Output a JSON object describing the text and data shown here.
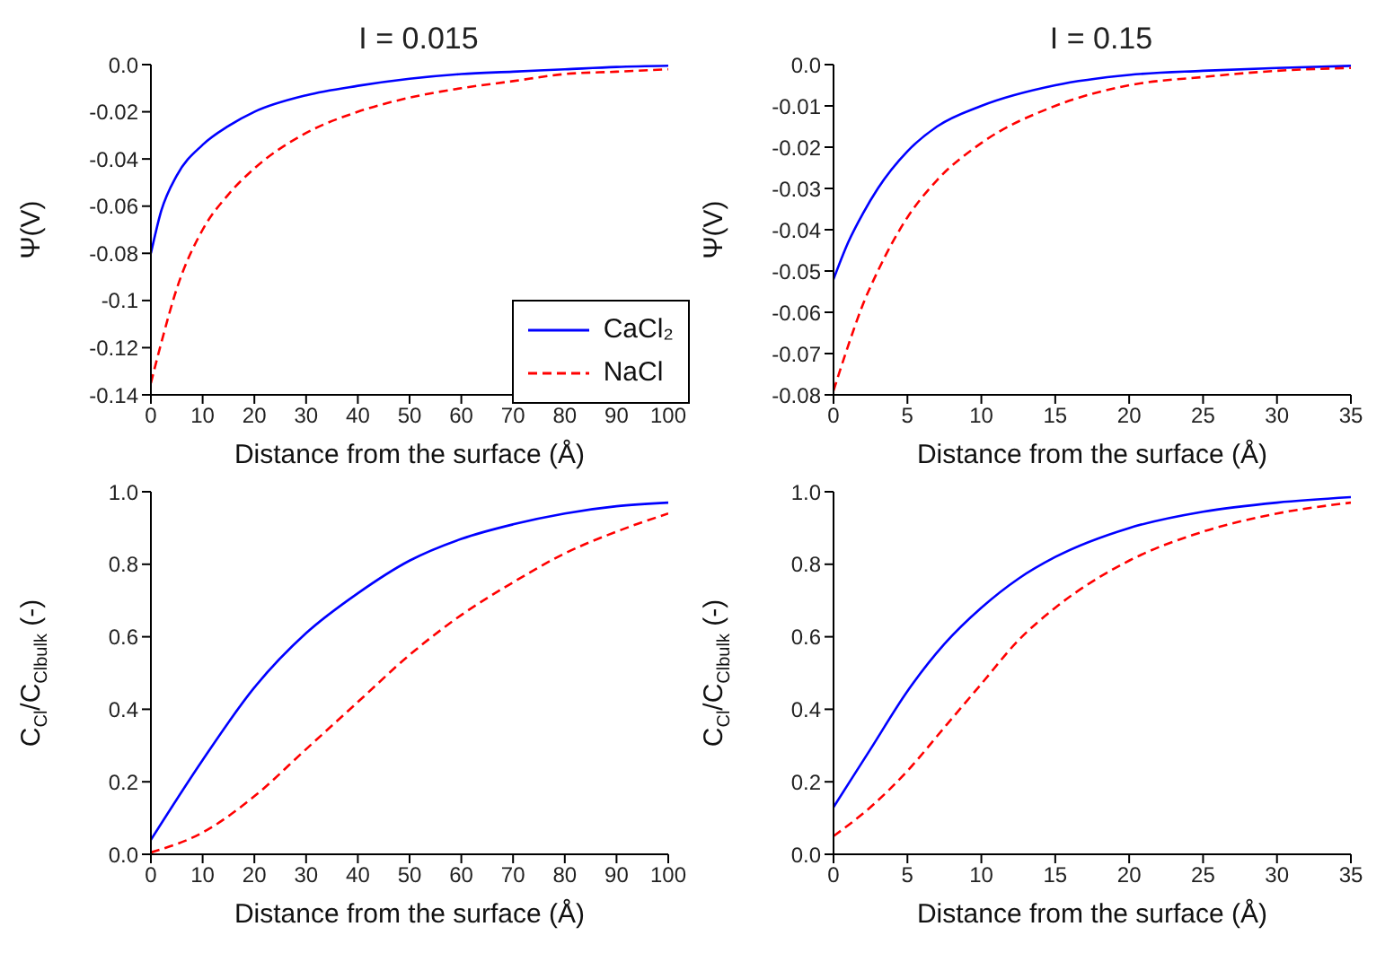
{
  "chart_data": [
    {
      "type": "line",
      "title": "I = 0.015",
      "xlabel": "Distance from the surface (Å)",
      "ylabel": "Ψ(V)",
      "xlim": [
        0,
        100
      ],
      "xticks": [
        0,
        10,
        20,
        30,
        40,
        50,
        60,
        70,
        80,
        90,
        100
      ],
      "ylim": [
        -0.14,
        0
      ],
      "yticks": [
        {
          "value": -0.14,
          "label": "-0.14"
        },
        -0.12,
        {
          "value": -0.1,
          "label": "-0.1"
        },
        -0.08,
        -0.06,
        -0.04,
        -0.02,
        {
          "value": 0,
          "label": "0.0"
        }
      ],
      "grid": false,
      "legend": "bottom right",
      "marker": "none",
      "series": [
        {
          "name": "CaCl₂",
          "color": "#0000ff",
          "line_style": "solid",
          "x": [
            0,
            2,
            5,
            10,
            15,
            20,
            30,
            40,
            50,
            60,
            70,
            80,
            90,
            100
          ],
          "values": [
            -0.08,
            -0.062,
            -0.047,
            -0.034,
            -0.026,
            -0.02,
            -0.013,
            -0.009,
            -0.006,
            -0.004,
            -0.003,
            -0.002,
            -0.001,
            -0.0005
          ]
        },
        {
          "name": "NaCl",
          "color": "#ff0000",
          "line_style": "dashed",
          "x": [
            0,
            2,
            5,
            10,
            15,
            20,
            30,
            40,
            50,
            60,
            70,
            80,
            90,
            100
          ],
          "values": [
            -0.135,
            -0.118,
            -0.095,
            -0.07,
            -0.055,
            -0.044,
            -0.029,
            -0.02,
            -0.014,
            -0.01,
            -0.007,
            -0.004,
            -0.003,
            -0.002
          ]
        }
      ]
    },
    {
      "type": "line",
      "title": "I = 0.15",
      "xlabel": "Distance from the surface (Å)",
      "ylabel": "Ψ(V)",
      "xlim": [
        0,
        35
      ],
      "xticks": [
        0,
        5,
        10,
        15,
        20,
        25,
        30,
        35
      ],
      "ylim": [
        -0.08,
        0
      ],
      "yticks": [
        -0.08,
        -0.07,
        -0.06,
        -0.05,
        -0.04,
        -0.03,
        -0.02,
        -0.01,
        {
          "value": 0,
          "label": "0.0"
        }
      ],
      "grid": false,
      "legend": false,
      "marker": "none",
      "series": [
        {
          "color": "#0000ff",
          "line_style": "solid",
          "x": [
            0,
            1,
            2,
            3,
            5,
            7,
            10,
            15,
            20,
            25,
            30,
            35
          ],
          "values": [
            -0.052,
            -0.043,
            -0.036,
            -0.03,
            -0.021,
            -0.015,
            -0.01,
            -0.005,
            -0.0025,
            -0.0015,
            -0.0008,
            -0.0003
          ]
        },
        {
          "color": "#ff0000",
          "line_style": "dashed",
          "x": [
            0,
            1,
            2,
            3,
            5,
            7,
            10,
            15,
            20,
            25,
            30,
            35
          ],
          "values": [
            -0.079,
            -0.068,
            -0.058,
            -0.05,
            -0.037,
            -0.028,
            -0.019,
            -0.01,
            -0.005,
            -0.003,
            -0.0015,
            -0.0008
          ]
        }
      ]
    },
    {
      "type": "line",
      "xlabel": "Distance from the surface (Å)",
      "ylabel": "C$_{Cl}$/C$_{Cl}$$_{bulk}$ (-)",
      "xlim": [
        0,
        100
      ],
      "xticks": [
        0,
        10,
        20,
        30,
        40,
        50,
        60,
        70,
        80,
        90,
        100
      ],
      "ylim": [
        0,
        1
      ],
      "yticks": [
        {
          "value": 0,
          "label": "0.0"
        },
        0.2,
        0.4,
        0.6,
        0.8,
        {
          "value": 1,
          "label": "1.0"
        }
      ],
      "grid": false,
      "legend": false,
      "marker": "none",
      "series": [
        {
          "color": "#0000ff",
          "line_style": "solid",
          "x": [
            0,
            10,
            20,
            30,
            40,
            50,
            60,
            70,
            80,
            90,
            100
          ],
          "values": [
            0.04,
            0.26,
            0.46,
            0.61,
            0.72,
            0.81,
            0.87,
            0.91,
            0.94,
            0.96,
            0.97
          ]
        },
        {
          "color": "#ff0000",
          "line_style": "dashed",
          "x": [
            0,
            10,
            20,
            30,
            40,
            50,
            60,
            70,
            80,
            90,
            100
          ],
          "values": [
            0.005,
            0.06,
            0.16,
            0.29,
            0.42,
            0.55,
            0.66,
            0.75,
            0.83,
            0.89,
            0.94
          ]
        }
      ]
    },
    {
      "type": "line",
      "xlabel": "Distance from the surface (Å)",
      "ylabel": "C$_{Cl}$/C$_{Cl}$$_{bulk}$ (-)",
      "xlim": [
        0,
        35
      ],
      "xticks": [
        0,
        5,
        10,
        15,
        20,
        25,
        30,
        35
      ],
      "ylim": [
        0,
        1
      ],
      "yticks": [
        {
          "value": 0,
          "label": "0.0"
        },
        0.2,
        0.4,
        0.6,
        0.8,
        {
          "value": 1,
          "label": "1.0"
        }
      ],
      "grid": false,
      "legend": false,
      "marker": "none",
      "series": [
        {
          "color": "#0000ff",
          "line_style": "solid",
          "x": [
            0,
            2.5,
            5,
            7.5,
            10,
            12.5,
            15,
            20,
            25,
            30,
            35
          ],
          "values": [
            0.13,
            0.29,
            0.45,
            0.58,
            0.68,
            0.76,
            0.82,
            0.9,
            0.945,
            0.97,
            0.985
          ]
        },
        {
          "color": "#ff0000",
          "line_style": "dashed",
          "x": [
            0,
            2.5,
            5,
            7.5,
            10,
            12.5,
            15,
            20,
            25,
            30,
            35
          ],
          "values": [
            0.05,
            0.13,
            0.23,
            0.35,
            0.47,
            0.59,
            0.68,
            0.81,
            0.89,
            0.94,
            0.97
          ]
        }
      ]
    }
  ]
}
